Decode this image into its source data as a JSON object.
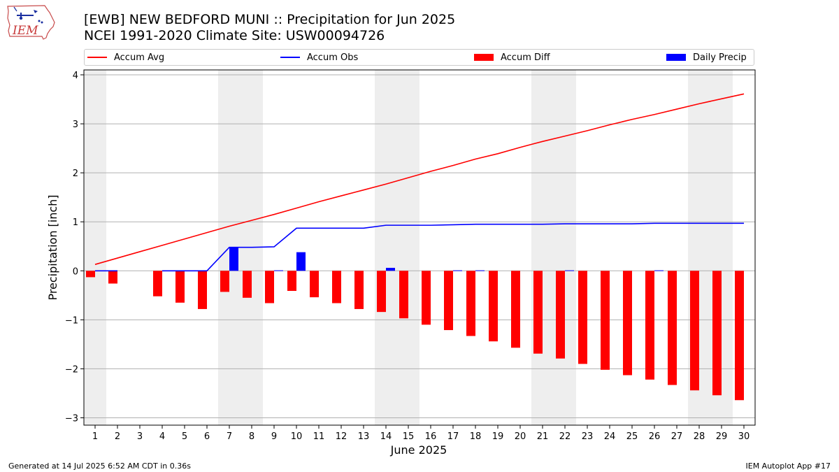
{
  "header": {
    "title": "[EWB] NEW BEDFORD MUNI :: Precipitation for Jun 2025",
    "subtitle": "NCEI 1991-2020 Climate Site: USW00094726"
  },
  "logo": {
    "text": "IEM",
    "icon": "iem-iowa-logo"
  },
  "footer": {
    "left": "Generated at 14 Jul 2025 6:52 AM CDT in 0.36s",
    "right": "IEM Autoplot App #17"
  },
  "colors": {
    "avg": "#ff0000",
    "obs": "#0000ff",
    "diff": "#ff0000",
    "daily": "#0000ff",
    "weekend_band": "#eeeeee",
    "grid": "#b0b0b0"
  },
  "legend": {
    "placement": "top, outside plot",
    "items": [
      {
        "label": "Accum Avg",
        "kind": "line",
        "color": "#ff0000"
      },
      {
        "label": "Accum Obs",
        "kind": "line",
        "color": "#0000ff"
      },
      {
        "label": "Accum Diff",
        "kind": "box",
        "color": "#ff0000"
      },
      {
        "label": "Daily Precip",
        "kind": "box",
        "color": "#0000ff"
      }
    ]
  },
  "chart_data": {
    "type": "bar",
    "title": "[EWB] NEW BEDFORD MUNI :: Precipitation for Jun 2025",
    "subtitle": "NCEI 1991-2020 Climate Site: USW00094726",
    "xlabel": "June 2025",
    "ylabel": "Precipitation [inch]",
    "ylim": [
      -3.15,
      4.1
    ],
    "yticks": [
      -3,
      -2,
      -1,
      0,
      1,
      2,
      3,
      4
    ],
    "ytick_labels": [
      "−3",
      "−2",
      "−1",
      "0",
      "1",
      "2",
      "3",
      "4"
    ],
    "grid": "horizontal",
    "categories": [
      "1",
      "2",
      "3",
      "4",
      "5",
      "6",
      "7",
      "8",
      "9",
      "10",
      "11",
      "12",
      "13",
      "14",
      "15",
      "16",
      "17",
      "18",
      "19",
      "20",
      "21",
      "22",
      "23",
      "24",
      "25",
      "26",
      "27",
      "28",
      "29",
      "30"
    ],
    "weekend_days": [
      1,
      7,
      8,
      14,
      15,
      21,
      22,
      28,
      29
    ],
    "series": [
      {
        "name": "Accum Avg",
        "type": "line",
        "values": [
          0.13,
          0.26,
          0.39,
          0.52,
          0.65,
          0.78,
          0.91,
          1.03,
          1.15,
          1.28,
          1.41,
          1.53,
          1.65,
          1.77,
          1.9,
          2.03,
          2.15,
          2.28,
          2.39,
          2.52,
          2.64,
          2.75,
          2.86,
          2.98,
          3.09,
          3.19,
          3.3,
          3.41,
          3.51,
          3.61
        ]
      },
      {
        "name": "Accum Obs",
        "type": "line",
        "values": [
          0.0,
          0.0,
          null,
          0.0,
          0.0,
          0.0,
          0.48,
          0.48,
          0.49,
          0.87,
          0.87,
          0.87,
          0.87,
          0.93,
          0.93,
          0.93,
          0.94,
          0.95,
          0.95,
          0.95,
          0.95,
          0.96,
          0.96,
          0.96,
          0.96,
          0.97,
          0.97,
          0.97,
          0.97,
          0.97
        ]
      },
      {
        "name": "Accum Diff",
        "type": "bar",
        "values": [
          -0.13,
          -0.26,
          null,
          -0.52,
          -0.65,
          -0.78,
          -0.43,
          -0.55,
          -0.66,
          -0.41,
          -0.54,
          -0.66,
          -0.78,
          -0.84,
          -0.97,
          -1.1,
          -1.21,
          -1.33,
          -1.44,
          -1.57,
          -1.69,
          -1.79,
          -1.9,
          -2.02,
          -2.13,
          -2.22,
          -2.33,
          -2.44,
          -2.54,
          -2.64
        ]
      },
      {
        "name": "Daily Precip",
        "type": "bar",
        "values": [
          0.0,
          0.0,
          null,
          0.0,
          0.0,
          0.0,
          0.48,
          0.0,
          0.01,
          0.38,
          0.0,
          0.0,
          0.0,
          0.06,
          0.0,
          0.0,
          0.01,
          0.01,
          0.0,
          0.0,
          0.0,
          0.01,
          0.0,
          0.0,
          0.0,
          0.01,
          0.0,
          0.0,
          0.0,
          0.0
        ]
      }
    ]
  }
}
